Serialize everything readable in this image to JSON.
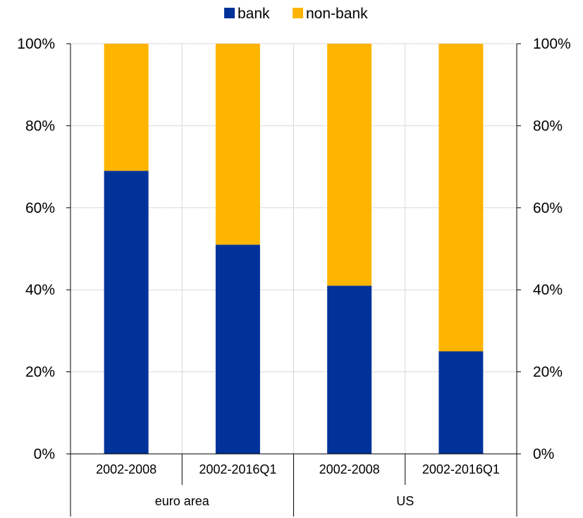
{
  "chart_data": {
    "type": "bar",
    "stacked": true,
    "percent_stacked": true,
    "categories": [
      "2002-2008",
      "2002-2016Q1",
      "2002-2008",
      "2002-2016Q1"
    ],
    "groups": [
      {
        "label": "euro area",
        "span": [
          0,
          1
        ]
      },
      {
        "label": "US",
        "span": [
          2,
          3
        ]
      }
    ],
    "series": [
      {
        "name": "bank",
        "color": "#003299",
        "values": [
          69,
          51,
          41,
          25
        ]
      },
      {
        "name": "non-bank",
        "color": "#ffb400",
        "values": [
          31,
          49,
          59,
          75
        ]
      }
    ],
    "ylim": [
      0,
      100
    ],
    "y_ticks": [
      "0%",
      "20%",
      "40%",
      "60%",
      "80%",
      "100%"
    ],
    "y_ticks_right": [
      "0%",
      "20%",
      "40%",
      "60%",
      "80%",
      "100%"
    ],
    "legend_position": "top",
    "grid": true,
    "gridline_color": "#b3b3b3"
  }
}
